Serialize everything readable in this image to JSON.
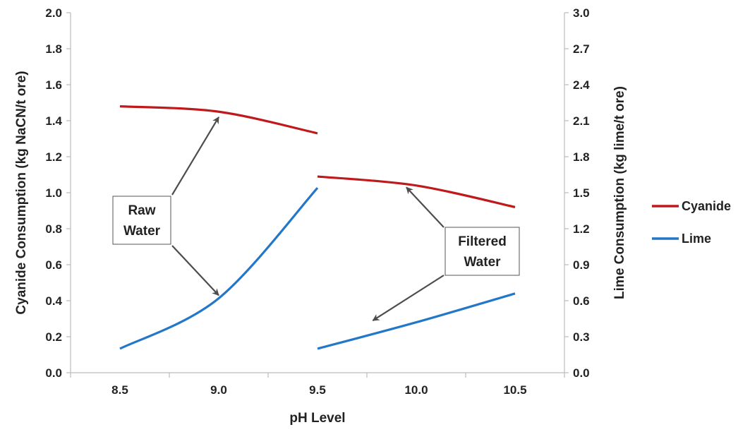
{
  "colors": {
    "cyanide": "#C0191B",
    "lime": "#2277C8",
    "axis": "#BBBBBB",
    "arrow": "#4D4D4D",
    "annotation_border": "#555555"
  },
  "chart_data": {
    "type": "line",
    "x": [
      8.5,
      9.0,
      9.5,
      10.0,
      10.5
    ],
    "xlabel": "pH Level",
    "ylabel_left": "Cyanide Consumption (kg NaCN/t ore)",
    "ylabel_right": "Lime Consumption (kg lime/t ore)",
    "x_tick_labels": [
      "8.5",
      "9.0",
      "9.5",
      "10.0",
      "10.5"
    ],
    "y_left_ticks": [
      "0.0",
      "0.2",
      "0.4",
      "0.6",
      "0.8",
      "1.0",
      "1.2",
      "1.4",
      "1.6",
      "1.8",
      "2.0"
    ],
    "y_right_ticks": [
      "0.0",
      "0.3",
      "0.6",
      "0.9",
      "1.2",
      "1.5",
      "1.8",
      "2.1",
      "2.4",
      "2.7",
      "3.0"
    ],
    "ylim_left": [
      0,
      2.0
    ],
    "ylim_right": [
      0,
      3.0
    ],
    "grid": false,
    "legend_position": "right",
    "series": [
      {
        "name": "Cyanide",
        "axis": "left",
        "segments": [
          {
            "x": [
              8.5,
              9.0,
              9.5
            ],
            "y": [
              1.48,
              1.45,
              1.33
            ]
          },
          {
            "x": [
              9.5,
              10.0,
              10.5
            ],
            "y": [
              1.09,
              1.04,
              0.92
            ]
          }
        ]
      },
      {
        "name": "Lime",
        "axis": "right",
        "segments": [
          {
            "x": [
              8.5,
              9.0,
              9.5
            ],
            "y": [
              0.2,
              0.62,
              1.54
            ]
          },
          {
            "x": [
              9.5,
              10.0,
              10.5
            ],
            "y": [
              0.2,
              0.42,
              0.66
            ]
          }
        ]
      }
    ],
    "annotations": [
      {
        "lines": [
          "Raw",
          "Water"
        ],
        "arrow_targets": [
          {
            "x": 9.0,
            "y_left": 1.42
          },
          {
            "x": 9.0,
            "y_left": 0.43
          }
        ]
      },
      {
        "lines": [
          "Filtered",
          "Water"
        ],
        "arrow_targets": [
          {
            "x": 9.95,
            "y_left": 1.03
          },
          {
            "x": 9.78,
            "y_left": 0.29
          }
        ]
      }
    ]
  }
}
